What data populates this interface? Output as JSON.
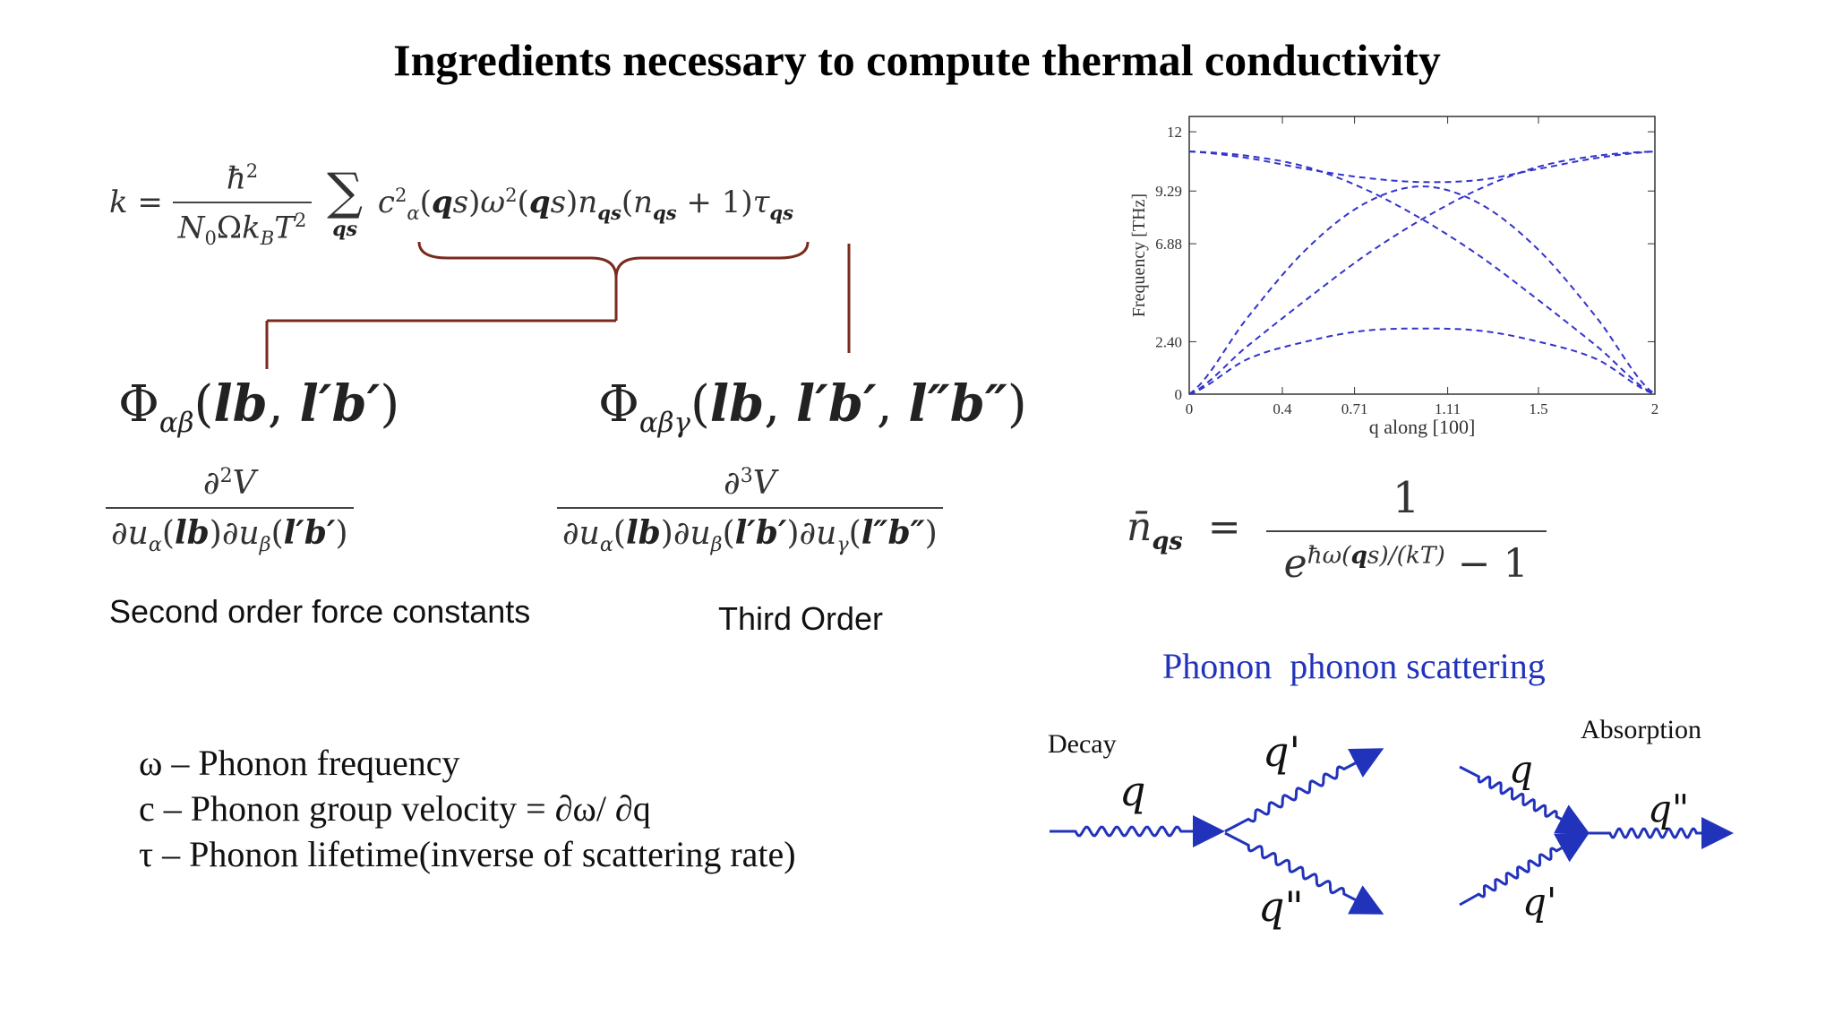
{
  "title": "Ingredients necessary to compute thermal conductivity",
  "equations": {
    "k_formula": "k = ħ² / (N₀ Ω k_B T²) Σ_qs c²_α(qs) ω²(qs) n_qs (n_qs + 1) τ_qs",
    "second_order": "Φ_αβ(lb, l′b′) = ∂²V / ∂u_α(lb)∂u_β(l′b′)",
    "third_order": "Φ_αβγ(lb, l′b′, l″b″) = ∂³V / ∂u_α(lb)∂u_β(l′b′)∂u_γ(l″b″)",
    "occupation": "n̄_qs = 1 / (e^{ħω(qs)/(kT)} − 1)"
  },
  "captions": {
    "second_order": "Second order force constants",
    "third_order": "Third Order"
  },
  "legend": [
    "ω – Phonon frequency",
    "c – Phonon group velocity = ∂ω/ ∂q",
    "τ – Phonon lifetime(inverse of scattering rate)"
  ],
  "scattering": {
    "title": "Phonon  phonon scattering",
    "decay": {
      "label": "Decay",
      "q_in": "q",
      "q_out1": "q'",
      "q_out2": "q\""
    },
    "absorption": {
      "label": "Absorption",
      "q_in1": "q",
      "q_in2": "q'",
      "q_out": "q\""
    }
  },
  "colors": {
    "accent_blue": "#2233bb",
    "bracket": "#7a2a1e",
    "curve": "#3333cc"
  },
  "chart_data": {
    "type": "line",
    "title": "",
    "xlabel": "q along [100]",
    "ylabel": "Frequency [THz]",
    "xlim": [
      0,
      2
    ],
    "ylim": [
      0,
      12.7
    ],
    "xticks": [
      "0",
      "0.4",
      "0.71",
      "1.11",
      "1.5",
      "2"
    ],
    "yticks": [
      "0",
      "2.40",
      "6.88",
      "9.29",
      "12"
    ],
    "x": [
      0,
      0.25,
      0.5,
      0.75,
      1.0,
      1.25,
      1.5,
      1.75,
      2.0
    ],
    "series": [
      {
        "values": [
          0,
          2.2,
          4.3,
          6.3,
          8.0,
          9.4,
          10.4,
          10.9,
          11.1
        ]
      },
      {
        "values": [
          0,
          3.5,
          6.6,
          8.7,
          9.5,
          8.7,
          6.6,
          3.5,
          0
        ]
      },
      {
        "values": [
          0,
          1.6,
          2.4,
          2.9,
          3.0,
          2.9,
          2.4,
          1.6,
          0
        ]
      },
      {
        "values": [
          11.1,
          10.8,
          10.3,
          9.9,
          9.7,
          9.8,
          10.3,
          10.8,
          11.1
        ]
      },
      {
        "values": [
          11.1,
          10.9,
          10.4,
          9.4,
          8.0,
          6.3,
          4.3,
          2.2,
          0
        ]
      }
    ]
  }
}
